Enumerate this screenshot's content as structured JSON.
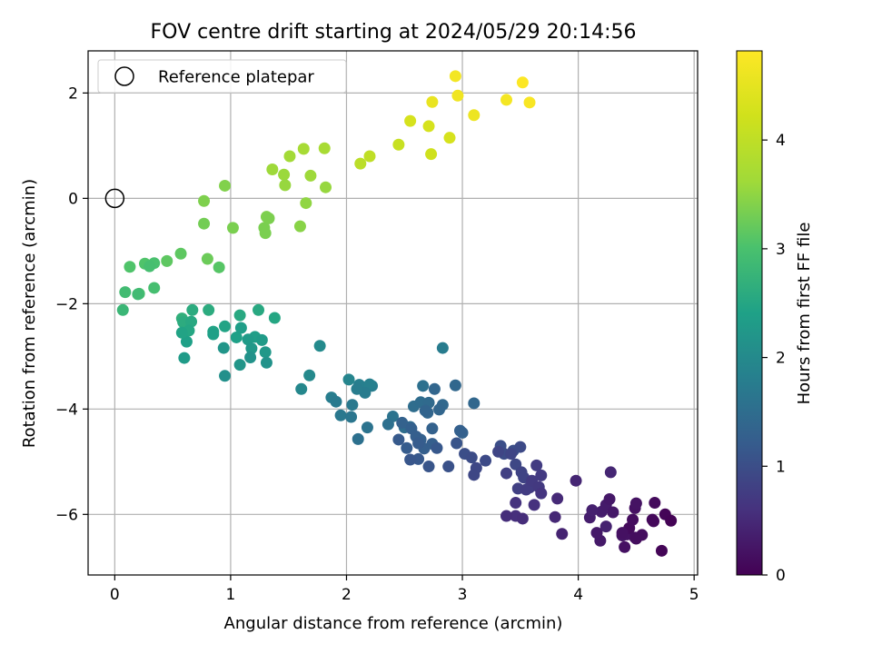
{
  "chart_data": {
    "type": "scatter",
    "title": "FOV centre drift starting at 2024/05/29 20:14:56",
    "xlabel": "Angular distance from reference (arcmin)",
    "ylabel": "Rotation from reference (arcmin)",
    "xlim": [
      -0.23,
      5.03
    ],
    "ylim": [
      -7.15,
      2.8
    ],
    "x_ticks": [
      0,
      1,
      2,
      3,
      4,
      5
    ],
    "x_tick_labels": [
      "0",
      "1",
      "2",
      "3",
      "4",
      "5"
    ],
    "y_ticks": [
      2,
      0,
      -2,
      -4,
      -6
    ],
    "y_tick_labels": [
      "2",
      "0",
      "−2",
      "−4",
      "−6"
    ],
    "grid": true,
    "legend": {
      "placement": "top-left",
      "entries": [
        "Reference platepar"
      ]
    },
    "reference_point": {
      "x": 0,
      "y": 0
    },
    "colorbar": {
      "label": "Hours from first FF file",
      "range": [
        0,
        4.82
      ],
      "ticks": [
        0,
        1,
        2,
        3,
        4
      ],
      "tick_labels": [
        "0",
        "1",
        "2",
        "3",
        "4"
      ],
      "colormap": "viridis"
    },
    "x": [
      3.52,
      3.58,
      3.38,
      3.1,
      2.94,
      2.96,
      2.74,
      2.55,
      2.71,
      2.89,
      2.45,
      2.73,
      2.2,
      2.12,
      1.81,
      1.63,
      1.51,
      1.36,
      1.46,
      1.69,
      1.47,
      1.82,
      1.65,
      0.95,
      0.77,
      1.31,
      1.33,
      1.29,
      1.3,
      1.6,
      0.77,
      1.02,
      0.57,
      0.8,
      0.45,
      0.13,
      0.9,
      0.34,
      0.26,
      0.3,
      0.21,
      0.34,
      0.09,
      0.2,
      0.07,
      0.58,
      0.67,
      0.81,
      1.24,
      1.38,
      0.59,
      0.66,
      0.64,
      1.08,
      0.85,
      0.95,
      1.05,
      0.62,
      0.85,
      0.58,
      1.09,
      1.21,
      1.15,
      1.27,
      1.18,
      1.3,
      0.6,
      0.94,
      1.08,
      1.17,
      1.31,
      0.95,
      1.77,
      2.83,
      1.68,
      1.61,
      2.02,
      2.11,
      2.22,
      2.2,
      2.16,
      2.09,
      1.87,
      1.91,
      2.05,
      1.95,
      2.04,
      2.4,
      2.18,
      2.36,
      2.1,
      2.66,
      2.58,
      2.5,
      2.64,
      2.55,
      2.71,
      2.94,
      3.1,
      2.76,
      2.83,
      2.8,
      2.7,
      2.68,
      2.74,
      3.0,
      2.98,
      2.48,
      2.56,
      2.64,
      2.6,
      2.67,
      2.62,
      2.52,
      2.45,
      2.74,
      2.78,
      2.62,
      2.55,
      2.71,
      2.88,
      2.95,
      3.02,
      3.08,
      3.2,
      3.12,
      3.1,
      3.33,
      3.36,
      3.44,
      3.5,
      3.46,
      3.51,
      3.53,
      3.48,
      3.38,
      3.31,
      3.42,
      3.55,
      3.58,
      3.6,
      3.66,
      3.68,
      3.64,
      3.68,
      3.46,
      3.38,
      3.46,
      3.52,
      3.62,
      3.82,
      3.8,
      3.86,
      3.98,
      4.28,
      4.2,
      4.1,
      4.12,
      4.19,
      4.16,
      4.24,
      4.27,
      4.3,
      4.38,
      4.4,
      4.42,
      4.49,
      4.55,
      4.5,
      4.44,
      4.47,
      4.64,
      4.66,
      4.65,
      4.72,
      4.75,
      4.8,
      4.24,
      4.38,
      4.49,
      4.5
    ],
    "y": [
      2.2,
      1.82,
      1.87,
      1.58,
      2.32,
      1.95,
      1.83,
      1.47,
      1.37,
      1.15,
      1.02,
      0.84,
      0.8,
      0.66,
      0.95,
      0.94,
      0.8,
      0.55,
      0.45,
      0.43,
      0.25,
      0.21,
      -0.09,
      0.24,
      -0.05,
      -0.35,
      -0.38,
      -0.56,
      -0.66,
      -0.53,
      -0.48,
      -0.56,
      -1.05,
      -1.15,
      -1.19,
      -1.3,
      -1.31,
      -1.23,
      -1.24,
      -1.29,
      -1.81,
      -1.7,
      -1.78,
      -1.82,
      -2.12,
      -2.28,
      -2.12,
      -2.12,
      -2.12,
      -2.27,
      -2.35,
      -2.34,
      -2.51,
      -2.22,
      -2.53,
      -2.43,
      -2.64,
      -2.72,
      -2.58,
      -2.55,
      -2.46,
      -2.63,
      -2.68,
      -2.69,
      -2.85,
      -2.92,
      -3.03,
      -2.84,
      -3.16,
      -3.02,
      -3.12,
      -3.37,
      -2.8,
      -2.84,
      -3.36,
      -3.62,
      -3.44,
      -3.54,
      -3.56,
      -3.53,
      -3.69,
      -3.62,
      -3.78,
      -3.86,
      -3.92,
      -4.12,
      -4.15,
      -4.14,
      -4.35,
      -4.29,
      -4.57,
      -3.56,
      -3.95,
      -4.35,
      -3.87,
      -4.34,
      -3.88,
      -3.55,
      -3.89,
      -3.62,
      -3.92,
      -4.01,
      -4.07,
      -4.03,
      -4.37,
      -4.45,
      -4.41,
      -4.26,
      -4.37,
      -4.58,
      -4.52,
      -4.75,
      -4.65,
      -4.74,
      -4.58,
      -4.66,
      -4.74,
      -4.95,
      -4.96,
      -5.09,
      -5.09,
      -4.65,
      -4.85,
      -4.92,
      -4.98,
      -5.12,
      -5.25,
      -4.7,
      -4.85,
      -4.79,
      -4.72,
      -5.05,
      -5.2,
      -5.3,
      -5.51,
      -5.22,
      -4.81,
      -4.85,
      -5.53,
      -5.49,
      -5.36,
      -5.48,
      -5.26,
      -5.07,
      -5.6,
      -6.03,
      -6.03,
      -5.78,
      -6.08,
      -5.82,
      -5.7,
      -6.05,
      -6.37,
      -5.36,
      -5.2,
      -5.95,
      -6.06,
      -5.92,
      -6.5,
      -6.35,
      -5.82,
      -5.71,
      -5.96,
      -6.4,
      -6.62,
      -6.38,
      -6.44,
      -6.39,
      -6.46,
      -6.26,
      -6.1,
      -6.1,
      -5.78,
      -6.13,
      -6.69,
      -6.0,
      -6.12,
      -6.23,
      -6.35,
      -5.88,
      -5.79
    ],
    "t": [
      4.8,
      4.75,
      4.7,
      4.6,
      4.68,
      4.65,
      4.55,
      4.3,
      4.3,
      4.3,
      4.1,
      4.2,
      4.0,
      3.95,
      3.72,
      3.7,
      3.65,
      3.6,
      3.58,
      3.6,
      3.55,
      3.55,
      3.5,
      3.4,
      3.38,
      3.38,
      3.36,
      3.35,
      3.35,
      3.45,
      3.3,
      3.35,
      3.15,
      3.25,
      3.15,
      3.05,
      3.1,
      3.0,
      3.05,
      2.95,
      2.98,
      2.95,
      2.9,
      2.88,
      2.8,
      2.68,
      2.6,
      2.6,
      2.55,
      2.5,
      2.6,
      2.55,
      2.5,
      2.55,
      2.45,
      2.45,
      2.4,
      2.4,
      2.4,
      2.45,
      2.35,
      2.35,
      2.3,
      2.3,
      2.25,
      2.25,
      2.3,
      2.2,
      2.2,
      2.15,
      2.15,
      2.1,
      2.0,
      1.75,
      1.98,
      1.95,
      1.92,
      1.8,
      1.78,
      1.82,
      1.75,
      1.78,
      1.78,
      1.72,
      1.7,
      1.68,
      1.65,
      1.6,
      1.6,
      1.55,
      1.55,
      1.55,
      1.5,
      1.5,
      1.48,
      1.45,
      1.45,
      1.4,
      1.4,
      1.38,
      1.42,
      1.38,
      1.38,
      1.35,
      1.3,
      1.3,
      1.28,
      1.3,
      1.28,
      1.28,
      1.25,
      1.25,
      1.2,
      1.2,
      1.18,
      1.25,
      1.15,
      1.15,
      1.12,
      1.1,
      1.05,
      1.1,
      1.0,
      0.98,
      0.95,
      0.92,
      0.9,
      1.0,
      0.98,
      1.0,
      0.95,
      0.9,
      0.85,
      0.85,
      0.8,
      0.8,
      0.88,
      0.88,
      0.75,
      0.75,
      0.72,
      0.7,
      0.72,
      0.75,
      0.65,
      0.58,
      0.55,
      0.62,
      0.55,
      0.6,
      0.5,
      0.48,
      0.42,
      0.45,
      0.45,
      0.35,
      0.35,
      0.38,
      0.3,
      0.3,
      0.32,
      0.28,
      0.28,
      0.25,
      0.2,
      0.22,
      0.18,
      0.15,
      0.15,
      0.12,
      0.15,
      0.1,
      0.12,
      0.08,
      0.05,
      0.05,
      0.02,
      0.4,
      0.2,
      0.2,
      0.22
    ]
  }
}
